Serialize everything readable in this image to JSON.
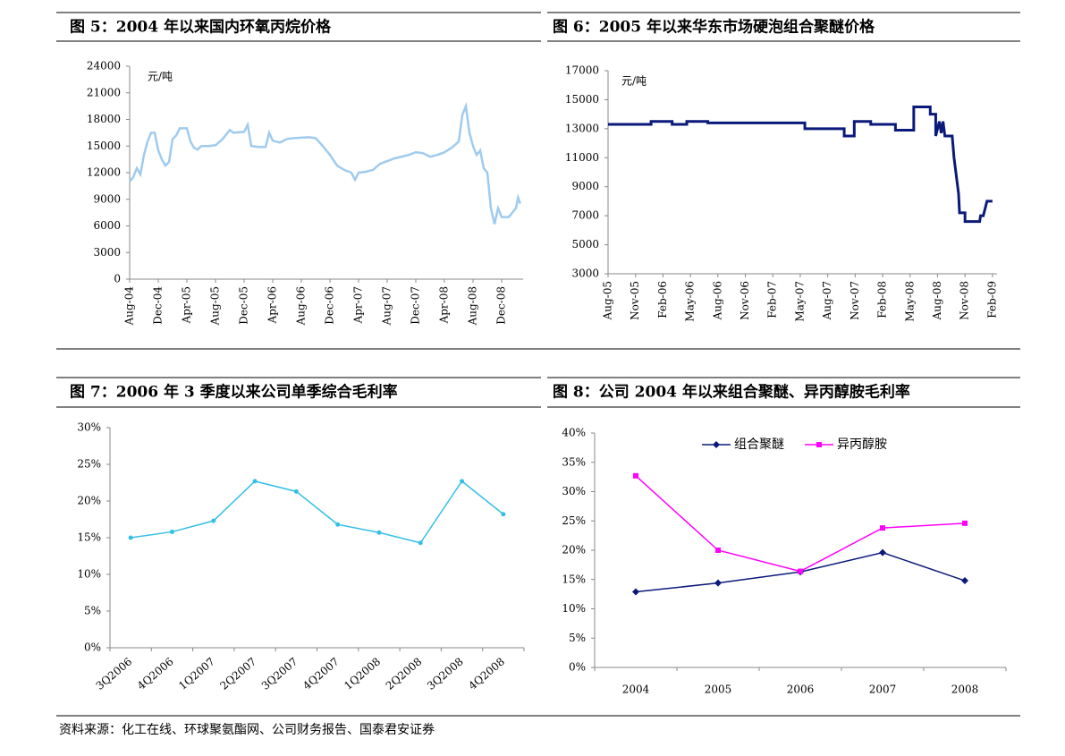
{
  "chart_data": [
    {
      "type": "line",
      "title": "图 5：2004 年以来国内环氧丙烷价格",
      "unit": "元/吨",
      "color": "#9fcbef",
      "xlim": [
        0,
        55
      ],
      "ylim": [
        0,
        24000
      ],
      "yticks": [
        0,
        3000,
        6000,
        9000,
        12000,
        15000,
        18000,
        21000,
        24000
      ],
      "xticks": [
        {
          "value": 0,
          "label": "Aug-04"
        },
        {
          "value": 4,
          "label": "Dec-04"
        },
        {
          "value": 8,
          "label": "Apr-05"
        },
        {
          "value": 12,
          "label": "Aug-05"
        },
        {
          "value": 16,
          "label": "Dec-05"
        },
        {
          "value": 20,
          "label": "Apr-06"
        },
        {
          "value": 24,
          "label": "Aug-06"
        },
        {
          "value": 28,
          "label": "Dec-06"
        },
        {
          "value": 32,
          "label": "Apr-07"
        },
        {
          "value": 36,
          "label": "Aug-07"
        },
        {
          "value": 40,
          "label": "Dec-07"
        },
        {
          "value": 44,
          "label": "Apr-08"
        },
        {
          "value": 48,
          "label": "Aug-08"
        },
        {
          "value": 52,
          "label": "Dec-08"
        }
      ],
      "x": [
        0,
        0.5,
        1,
        1.5,
        2,
        2.5,
        3,
        3.5,
        4,
        4.5,
        5,
        5.5,
        6,
        6.5,
        7,
        8,
        8.5,
        9,
        9.5,
        10,
        11,
        12,
        13,
        14,
        14.5,
        16,
        16.5,
        17,
        18,
        19,
        19.5,
        20,
        21,
        22,
        23,
        25,
        26,
        27,
        28,
        29,
        30,
        31,
        31.5,
        32,
        33,
        34,
        35,
        36,
        37,
        38,
        39,
        40,
        41,
        42,
        43,
        44,
        45,
        46,
        46.5,
        47,
        47.5,
        48,
        48.5,
        49,
        49.5,
        50,
        50.5,
        51,
        51.5,
        52,
        53,
        53.5,
        54,
        54.3,
        54.6
      ],
      "values": [
        11000,
        11500,
        12500,
        11800,
        14000,
        15500,
        16500,
        16500,
        14500,
        13500,
        12800,
        13200,
        15800,
        16200,
        17000,
        17000,
        15500,
        14800,
        14600,
        15000,
        15000,
        15100,
        15800,
        16800,
        16500,
        16600,
        17400,
        15000,
        14900,
        14900,
        16500,
        15600,
        15400,
        15800,
        15900,
        16000,
        15900,
        15000,
        14000,
        12800,
        12300,
        12000,
        11200,
        12000,
        12100,
        12300,
        13000,
        13300,
        13600,
        13800,
        14000,
        14300,
        14200,
        13800,
        14000,
        14300,
        14800,
        15500,
        18500,
        19500,
        16500,
        15000,
        14000,
        14500,
        12500,
        12000,
        8000,
        6200,
        8000,
        7000,
        7000,
        7500,
        8000,
        9200,
        8500
      ]
    },
    {
      "type": "line",
      "title": "图 6：2005 年以来华东市场硬泡组合聚醚价格",
      "unit": "元/吨",
      "color": "#0a1a7a",
      "xlim": [
        0,
        42.5
      ],
      "ylim": [
        3000,
        17000
      ],
      "yticks": [
        3000,
        5000,
        7000,
        9000,
        11000,
        13000,
        15000,
        17000
      ],
      "xticks": [
        {
          "value": 0,
          "label": "Aug-05"
        },
        {
          "value": 3,
          "label": "Nov-05"
        },
        {
          "value": 6,
          "label": "Feb-06"
        },
        {
          "value": 9,
          "label": "May-06"
        },
        {
          "value": 12,
          "label": "Aug-06"
        },
        {
          "value": 15,
          "label": "Nov-06"
        },
        {
          "value": 18,
          "label": "Feb-07"
        },
        {
          "value": 21,
          "label": "May-07"
        },
        {
          "value": 24,
          "label": "Aug-07"
        },
        {
          "value": 27,
          "label": "Nov-07"
        },
        {
          "value": 30,
          "label": "Feb-08"
        },
        {
          "value": 33,
          "label": "May-08"
        },
        {
          "value": 36,
          "label": "Aug-08"
        },
        {
          "value": 39,
          "label": "Nov-08"
        },
        {
          "value": 42,
          "label": "Feb-09"
        }
      ],
      "x": [
        0,
        4.7,
        4.7,
        7,
        7,
        8.6,
        8.6,
        10.9,
        10.9,
        21.5,
        21.5,
        25.8,
        25.8,
        26.9,
        26.9,
        28.7,
        28.7,
        31.4,
        31.4,
        33.4,
        33.4,
        35.2,
        35.2,
        35.8,
        35.8,
        36.2,
        36.4,
        36.6,
        36.8,
        37,
        37.6,
        37.8,
        38,
        38.3,
        38.4,
        39,
        39,
        40.6,
        40.7,
        41,
        41.2,
        41.4,
        42
      ],
      "values": [
        13300,
        13300,
        13500,
        13500,
        13300,
        13300,
        13500,
        13500,
        13400,
        13400,
        13000,
        13000,
        12500,
        12500,
        13500,
        13500,
        13300,
        13300,
        12900,
        12900,
        14500,
        14500,
        14000,
        14000,
        12500,
        13500,
        12700,
        13500,
        12500,
        12500,
        12500,
        11000,
        10000,
        8500,
        7200,
        7200,
        6600,
        6600,
        7000,
        7000,
        7500,
        8000,
        8000
      ]
    },
    {
      "type": "line",
      "title": "图 7：2006 年 3 季度以来公司单季综合毛利率",
      "color": "#33bfe6",
      "categories": [
        "3Q2006",
        "4Q2006",
        "1Q2007",
        "2Q2007",
        "3Q2007",
        "4Q2007",
        "1Q2008",
        "2Q2008",
        "3Q2008",
        "4Q2008"
      ],
      "values": [
        15.0,
        15.8,
        17.3,
        22.7,
        21.3,
        16.8,
        15.7,
        14.3,
        22.7,
        18.2
      ],
      "ylim": [
        0,
        30
      ],
      "yticks": [
        {
          "value": 0,
          "label": "0%"
        },
        {
          "value": 5,
          "label": "5%"
        },
        {
          "value": 10,
          "label": "10%"
        },
        {
          "value": 15,
          "label": "15%"
        },
        {
          "value": 20,
          "label": "20%"
        },
        {
          "value": 25,
          "label": "25%"
        },
        {
          "value": 30,
          "label": "30%"
        }
      ]
    },
    {
      "type": "line",
      "title": "图 8：公司 2004 年以来组合聚醚、异丙醇胺毛利率",
      "categories": [
        "2004",
        "2005",
        "2006",
        "2007",
        "2008"
      ],
      "series": [
        {
          "name": "组合聚醚",
          "color": "#0a1a7a",
          "marker": "diamond",
          "values": [
            12.9,
            14.4,
            16.3,
            19.6,
            14.8
          ]
        },
        {
          "name": "异丙醇胺",
          "color": "#ff00ff",
          "marker": "square",
          "values": [
            32.7,
            20.0,
            16.4,
            23.8,
            24.6
          ]
        }
      ],
      "ylim": [
        0,
        40
      ],
      "yticks": [
        {
          "value": 0,
          "label": "0%"
        },
        {
          "value": 5,
          "label": "5%"
        },
        {
          "value": 10,
          "label": "10%"
        },
        {
          "value": 15,
          "label": "15%"
        },
        {
          "value": 20,
          "label": "20%"
        },
        {
          "value": 25,
          "label": "25%"
        },
        {
          "value": 30,
          "label": "30%"
        },
        {
          "value": 35,
          "label": "35%"
        },
        {
          "value": 40,
          "label": "40%"
        }
      ],
      "legend": "top"
    }
  ],
  "source": "资料来源：化工在线、环球聚氨酯网、公司财务报告、国泰君安证券"
}
